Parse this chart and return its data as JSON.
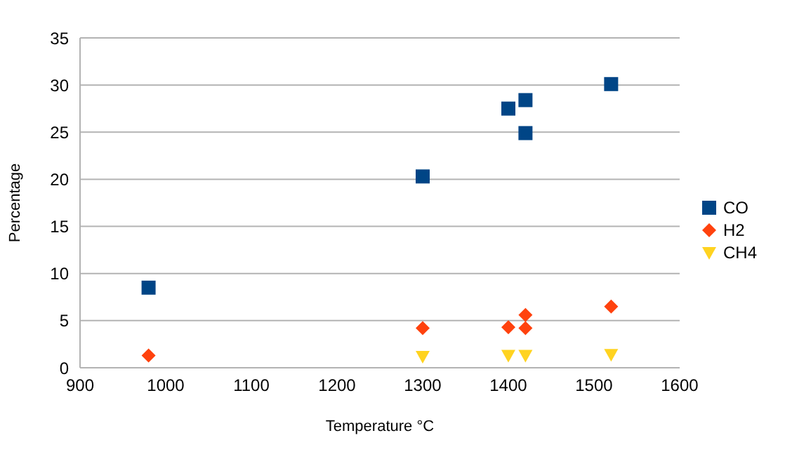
{
  "chart_data": {
    "type": "scatter",
    "xlabel": "Temperature  °C",
    "ylabel": "Percentage",
    "xlim": [
      900,
      1600
    ],
    "xticks": [
      900,
      1000,
      1100,
      1200,
      1300,
      1400,
      1500,
      1600
    ],
    "ylim": [
      0,
      35
    ],
    "yticks": [
      0,
      5,
      10,
      15,
      20,
      25,
      30,
      35
    ],
    "grid": "y",
    "legend": "right",
    "series": [
      {
        "name": "CO",
        "color": "#004586",
        "marker": "square",
        "x": [
          980,
          1300,
          1400,
          1420,
          1420,
          1520
        ],
        "values": [
          8.5,
          20.3,
          27.5,
          28.4,
          24.9,
          30.1
        ]
      },
      {
        "name": "H2",
        "color": "#ff420e",
        "marker": "diamond",
        "x": [
          980,
          1300,
          1400,
          1420,
          1420,
          1520
        ],
        "values": [
          1.3,
          4.2,
          4.3,
          5.6,
          4.2,
          6.5
        ]
      },
      {
        "name": "CH4",
        "color": "#ffd320",
        "marker": "triangle-down",
        "x": [
          1300,
          1400,
          1420,
          1520
        ],
        "values": [
          1.2,
          1.3,
          1.3,
          1.4
        ]
      }
    ]
  }
}
